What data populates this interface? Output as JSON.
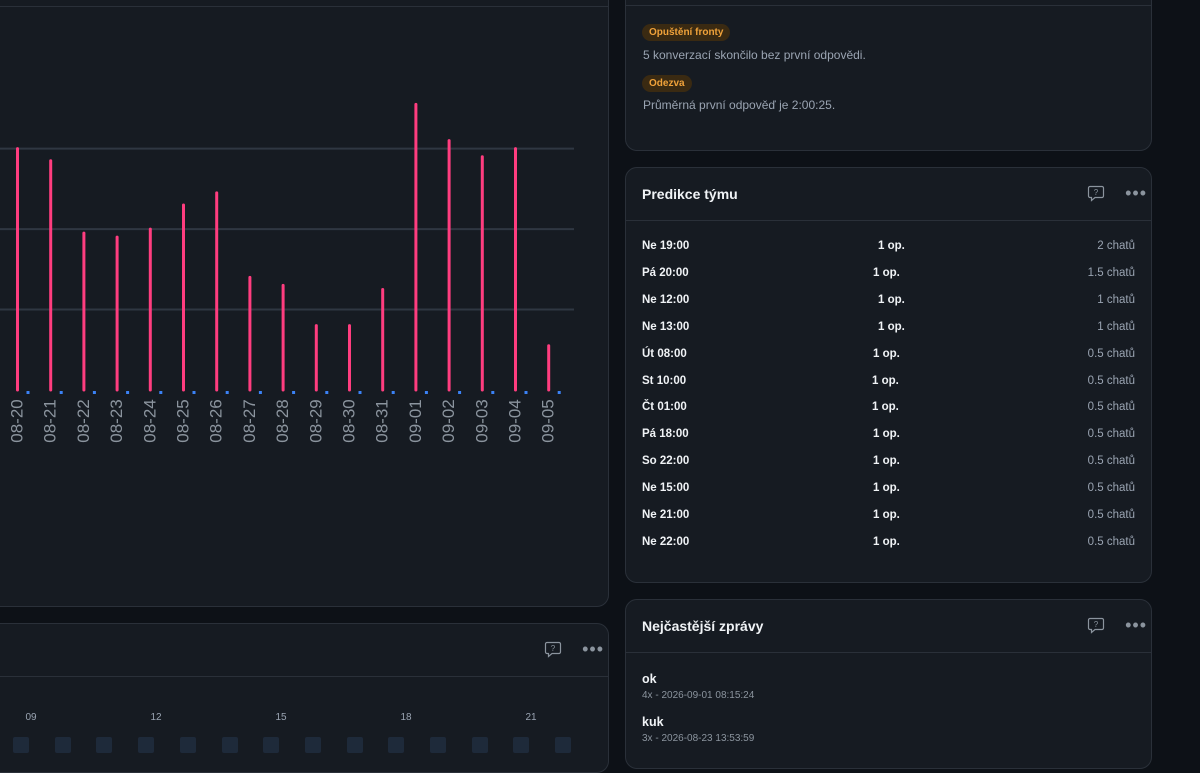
{
  "chart_data": {
    "type": "bar",
    "categories": [
      "08-20",
      "08-21",
      "08-22",
      "08-23",
      "08-24",
      "08-25",
      "08-26",
      "08-27",
      "08-28",
      "08-29",
      "08-30",
      "08-31",
      "09-01",
      "09-02",
      "09-03",
      "09-04",
      "09-05"
    ],
    "series": [
      {
        "values": [
          30,
          28.5,
          19.5,
          19,
          20,
          23,
          24.5,
          14,
          13,
          8,
          8,
          12.5,
          35.5,
          31,
          29,
          30,
          5.5
        ],
        "color": "#ff3d7f"
      },
      {
        "values": [
          0,
          0,
          0,
          0,
          0,
          0,
          0,
          0,
          0,
          0,
          0,
          0,
          0,
          0,
          0,
          0,
          0
        ],
        "color": "#3b82f6"
      }
    ],
    "ylim": [
      0,
      45
    ],
    "gridlines": [
      10,
      20,
      30
    ],
    "grid": true
  },
  "insights": {
    "items": [
      {
        "badge": "Opuštění fronty",
        "text": "5 konverzací skončilo bez první odpovědi."
      },
      {
        "badge": "Odezva",
        "text": "Průměrná první odpověď je 2:00:25."
      }
    ]
  },
  "predictions": {
    "title": "Predikce týmu",
    "rows": [
      {
        "time": "Ne 19:00",
        "ops": "1 op.",
        "chats": "2 chatů"
      },
      {
        "time": "Pá 20:00",
        "ops": "1 op.",
        "chats": "1.5 chatů"
      },
      {
        "time": "Ne 12:00",
        "ops": "1 op.",
        "chats": "1 chatů"
      },
      {
        "time": "Ne 13:00",
        "ops": "1 op.",
        "chats": "1 chatů"
      },
      {
        "time": "Út 08:00",
        "ops": "1 op.",
        "chats": "0.5 chatů"
      },
      {
        "time": "St 10:00",
        "ops": "1 op.",
        "chats": "0.5 chatů"
      },
      {
        "time": "Čt 01:00",
        "ops": "1 op.",
        "chats": "0.5 chatů"
      },
      {
        "time": "Pá 18:00",
        "ops": "1 op.",
        "chats": "0.5 chatů"
      },
      {
        "time": "So 22:00",
        "ops": "1 op.",
        "chats": "0.5 chatů"
      },
      {
        "time": "Ne 15:00",
        "ops": "1 op.",
        "chats": "0.5 chatů"
      },
      {
        "time": "Ne 21:00",
        "ops": "1 op.",
        "chats": "0.5 chatů"
      },
      {
        "time": "Ne 22:00",
        "ops": "1 op.",
        "chats": "0.5 chatů"
      }
    ]
  },
  "messages": {
    "title": "Nejčastější zprávy",
    "items": [
      {
        "text": "ok",
        "meta": "4x - 2026-09-01 08:15:24"
      },
      {
        "text": "kuk",
        "meta": "3x - 2026-08-23 13:53:59"
      }
    ]
  },
  "heatmap": {
    "hour_labels": [
      "09",
      "12",
      "15",
      "18",
      "21"
    ]
  },
  "icons": {
    "help": "help-bubble-icon",
    "more": "more-dots-icon"
  }
}
